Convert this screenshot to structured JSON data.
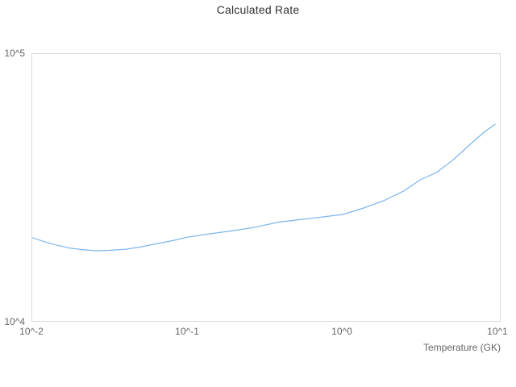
{
  "chart": {
    "title": "Calculated Rate"
  },
  "colors": {
    "line": "#7cb5ec",
    "plot_border": "#d9d9d9",
    "tick_text": "#666666",
    "title_text": "#333333",
    "background": "#ffffff"
  },
  "chart_data": {
    "type": "line",
    "title": "Calculated Rate",
    "xlabel": "Temperature (GK)",
    "ylabel": "",
    "x_scale": "log",
    "y_scale": "log",
    "xlim": [
      0.01,
      10.5
    ],
    "ylim": [
      10000,
      100000
    ],
    "grid": false,
    "legend": false,
    "x_tick_labels": [
      "10^-2",
      "10^-1",
      "10^0",
      "10^1"
    ],
    "y_tick_labels": {
      "top": "10^5",
      "bottom": "10^4"
    },
    "series": [
      {
        "name": "Calculated Rate",
        "color": "#7cb5ec",
        "points": [
          [
            0.01,
            20700
          ],
          [
            0.0121,
            19950
          ],
          [
            0.0145,
            19400
          ],
          [
            0.0173,
            18950
          ],
          [
            0.0207,
            18700
          ],
          [
            0.0257,
            18500
          ],
          [
            0.0315,
            18570
          ],
          [
            0.04,
            18750
          ],
          [
            0.0508,
            19160
          ],
          [
            0.0645,
            19700
          ],
          [
            0.08,
            20180
          ],
          [
            0.1,
            20800
          ],
          [
            0.132,
            21300
          ],
          [
            0.188,
            21900
          ],
          [
            0.268,
            22600
          ],
          [
            0.386,
            23650
          ],
          [
            0.55,
            24230
          ],
          [
            0.745,
            24740
          ],
          [
            1.0,
            25250
          ],
          [
            1.36,
            26700
          ],
          [
            1.83,
            28400
          ],
          [
            2.47,
            30900
          ],
          [
            3.15,
            34000
          ],
          [
            4.0,
            36200
          ],
          [
            5.06,
            40100
          ],
          [
            6.43,
            45450
          ],
          [
            8.1,
            51150
          ],
          [
            9.55,
            54800
          ]
        ]
      }
    ]
  }
}
